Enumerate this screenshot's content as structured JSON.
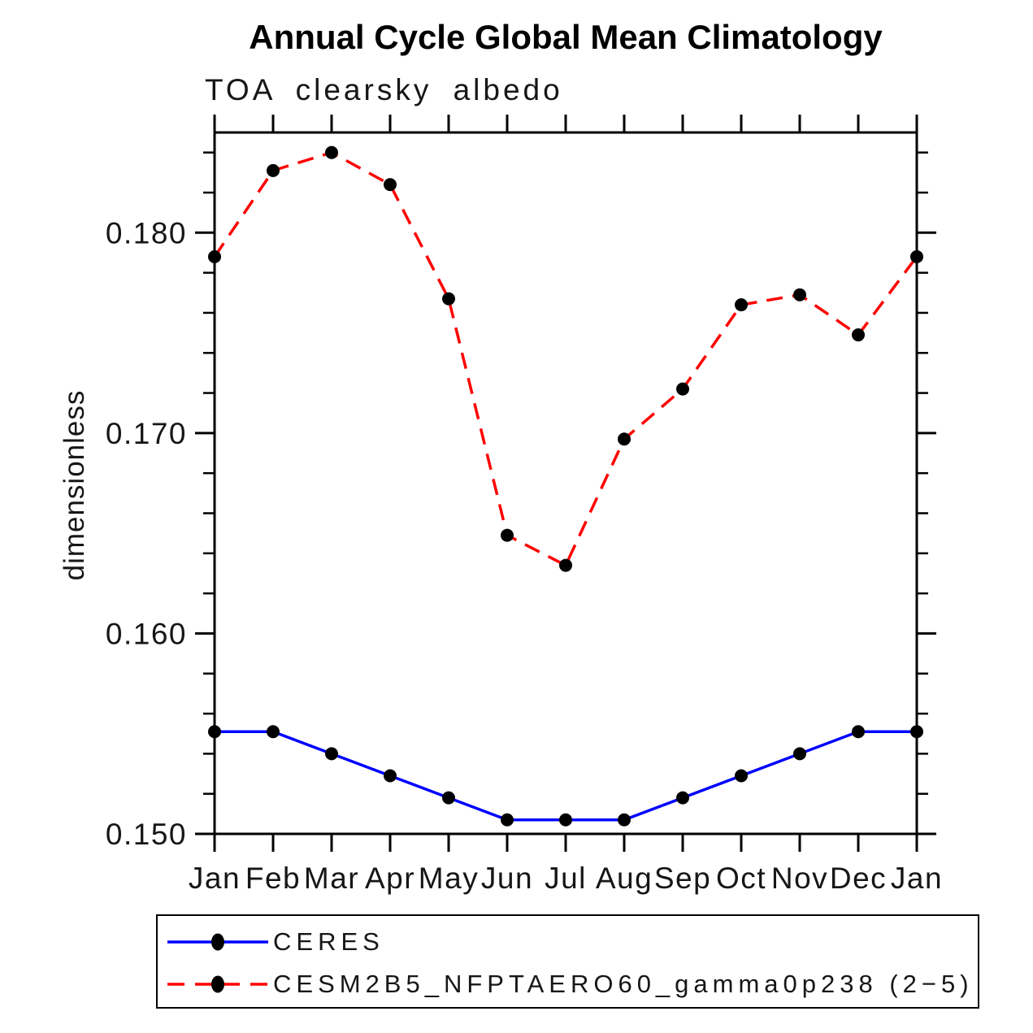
{
  "header": {
    "title": "Annual Cycle Global Mean Climatology",
    "subtitle": "TOA clearsky albedo"
  },
  "axes": {
    "y_label": "dimensionless",
    "axis_color": "#000000"
  },
  "chart_data": {
    "type": "line",
    "title": "Annual Cycle Global Mean Climatology",
    "subtitle": "TOA clearsky albedo",
    "xlabel": "",
    "ylabel": "dimensionless",
    "categories": [
      "Jan",
      "Feb",
      "Mar",
      "Apr",
      "May",
      "Jun",
      "Jul",
      "Aug",
      "Sep",
      "Oct",
      "Nov",
      "Dec",
      "Jan"
    ],
    "ylim": [
      0.15,
      0.185
    ],
    "y_major_ticks": [
      0.15,
      0.16,
      0.17,
      0.18
    ],
    "y_tick_labels": [
      "0.150",
      "0.160",
      "0.170",
      "0.180"
    ],
    "y_minor_step": 0.002,
    "grid": false,
    "legend_position": "bottom",
    "axis_color": "#000000",
    "series": [
      {
        "name": "CERES",
        "color": "#0000ff",
        "style": "solid",
        "marker": "circle",
        "marker_color": "#000000",
        "values": [
          0.1551,
          0.1551,
          0.154,
          0.1529,
          0.1518,
          0.1507,
          0.1507,
          0.1507,
          0.1518,
          0.1529,
          0.154,
          0.1551,
          0.1551
        ]
      },
      {
        "name": "CESM2B5_NFPTAERO60_gamma0p238 (2−5)",
        "color": "#ff0000",
        "style": "dashed",
        "marker": "circle",
        "marker_color": "#000000",
        "values": [
          0.1788,
          0.1831,
          0.184,
          0.1824,
          0.1767,
          0.1649,
          0.1634,
          0.1697,
          0.1722,
          0.1764,
          0.1769,
          0.1749,
          0.1788
        ]
      }
    ]
  }
}
